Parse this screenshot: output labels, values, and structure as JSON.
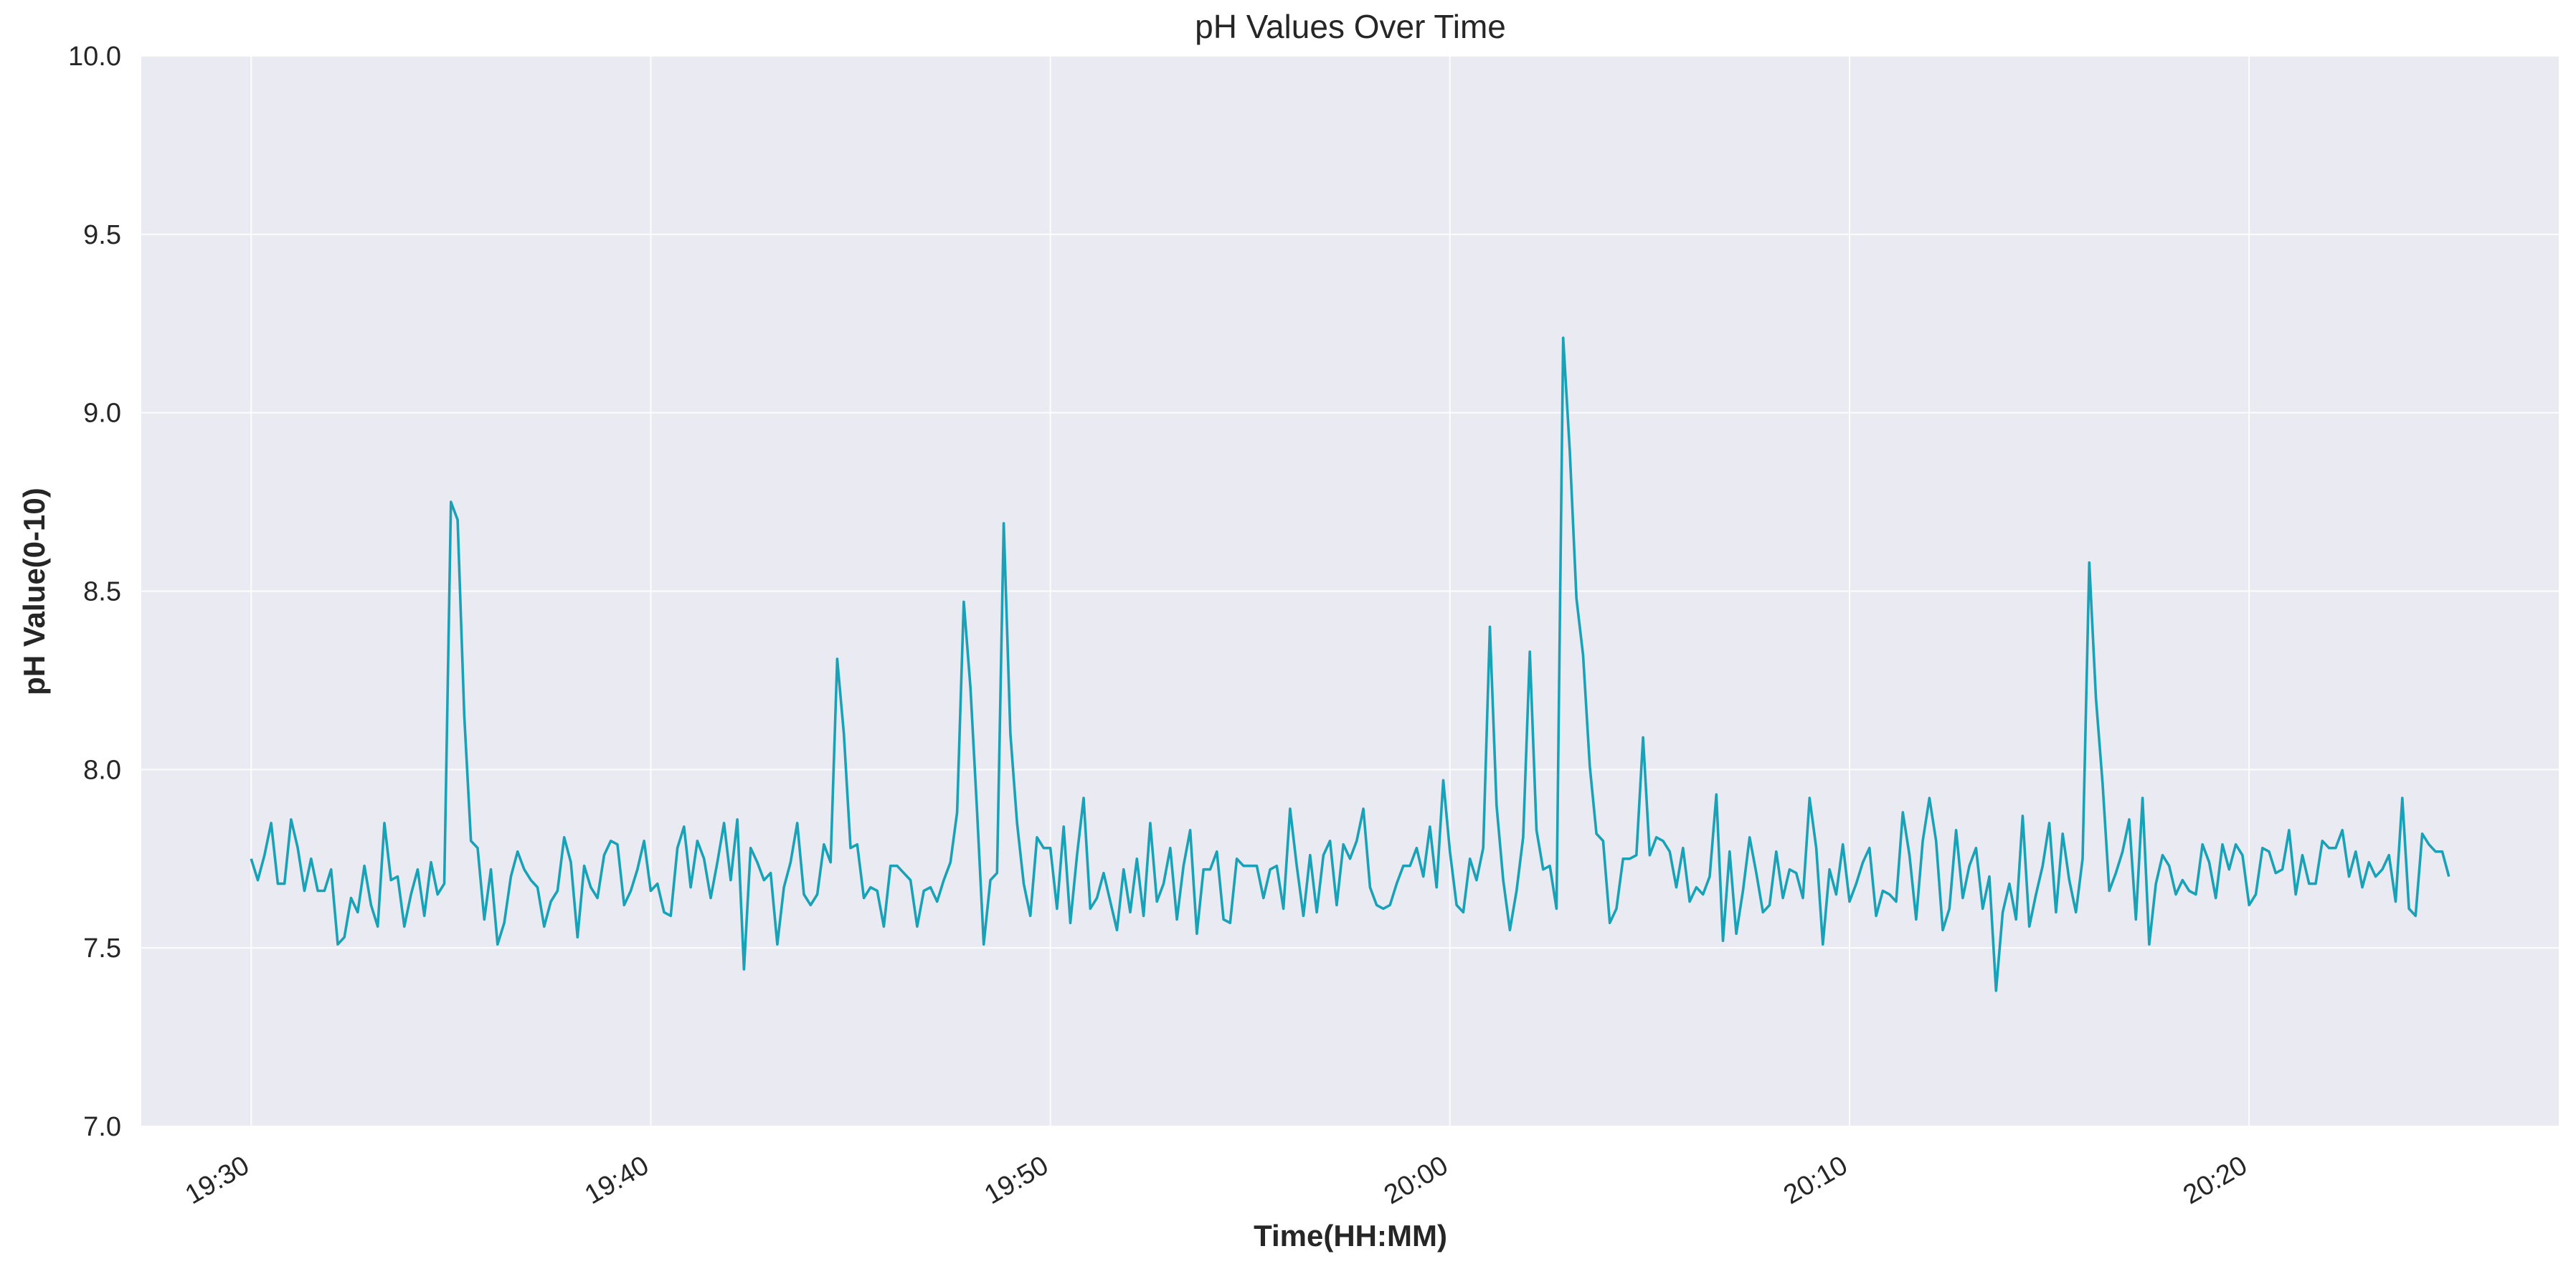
{
  "chart_data": {
    "type": "line",
    "title": "pH Values Over Time",
    "xlabel": "Time(HH:MM)",
    "ylabel": "pH Value(0-10)",
    "ylim": [
      7.0,
      10.0
    ],
    "xlim_minutes": [
      "19:27:15",
      "20:27:45"
    ],
    "yticks": [
      "7.0",
      "7.5",
      "8.0",
      "8.5",
      "9.0",
      "9.5",
      "10.0"
    ],
    "xticks": [
      "19:30",
      "19:40",
      "19:50",
      "20:00",
      "20:10",
      "20:20"
    ],
    "grid": true,
    "background": "#eaeaf2",
    "line_color": "#17a2b8",
    "series": [
      {
        "x_start": "19:30:00",
        "x_end": "20:25:00",
        "values": [
          7.75,
          7.69,
          7.76,
          7.85,
          7.68,
          7.68,
          7.86,
          7.78,
          7.66,
          7.75,
          7.66,
          7.66,
          7.72,
          7.51,
          7.53,
          7.64,
          7.6,
          7.73,
          7.62,
          7.56,
          7.85,
          7.69,
          7.7,
          7.56,
          7.65,
          7.72,
          7.59,
          7.74,
          7.65,
          7.68,
          8.75,
          8.7,
          8.15,
          7.8,
          7.78,
          7.58,
          7.72,
          7.51,
          7.57,
          7.7,
          7.77,
          7.72,
          7.69,
          7.67,
          7.56,
          7.63,
          7.66,
          7.81,
          7.74,
          7.53,
          7.73,
          7.67,
          7.64,
          7.76,
          7.8,
          7.79,
          7.62,
          7.66,
          7.72,
          7.8,
          7.66,
          7.68,
          7.6,
          7.59,
          7.78,
          7.84,
          7.67,
          7.8,
          7.75,
          7.64,
          7.74,
          7.85,
          7.69,
          7.86,
          7.44,
          7.78,
          7.74,
          7.69,
          7.71,
          7.51,
          7.67,
          7.74,
          7.85,
          7.65,
          7.62,
          7.65,
          7.79,
          7.74,
          8.31,
          8.1,
          7.78,
          7.79,
          7.64,
          7.67,
          7.66,
          7.56,
          7.73,
          7.73,
          7.71,
          7.69,
          7.56,
          7.66,
          7.67,
          7.63,
          7.69,
          7.74,
          7.88,
          8.47,
          8.23,
          7.88,
          7.51,
          7.69,
          7.71,
          8.69,
          8.1,
          7.85,
          7.68,
          7.59,
          7.81,
          7.78,
          7.78,
          7.61,
          7.84,
          7.57,
          7.76,
          7.92,
          7.61,
          7.64,
          7.71,
          7.63,
          7.55,
          7.72,
          7.6,
          7.75,
          7.59,
          7.85,
          7.63,
          7.68,
          7.78,
          7.58,
          7.73,
          7.83,
          7.54,
          7.72,
          7.72,
          7.77,
          7.58,
          7.57,
          7.75,
          7.73,
          7.73,
          7.73,
          7.64,
          7.72,
          7.73,
          7.61,
          7.89,
          7.73,
          7.59,
          7.76,
          7.6,
          7.76,
          7.8,
          7.62,
          7.79,
          7.75,
          7.8,
          7.89,
          7.67,
          7.62,
          7.61,
          7.62,
          7.68,
          7.73,
          7.73,
          7.78,
          7.7,
          7.84,
          7.67,
          7.97,
          7.77,
          7.62,
          7.6,
          7.75,
          7.69,
          7.78,
          8.4,
          7.9,
          7.69,
          7.55,
          7.66,
          7.81,
          8.33,
          7.83,
          7.72,
          7.73,
          7.61,
          9.21,
          8.89,
          8.48,
          8.32,
          8.01,
          7.82,
          7.8,
          7.57,
          7.61,
          7.75,
          7.75,
          7.76,
          8.09,
          7.76,
          7.81,
          7.8,
          7.77,
          7.67,
          7.78,
          7.63,
          7.67,
          7.65,
          7.7,
          7.93,
          7.52,
          7.77,
          7.54,
          7.66,
          7.81,
          7.71,
          7.6,
          7.62,
          7.77,
          7.64,
          7.72,
          7.71,
          7.64,
          7.92,
          7.78,
          7.51,
          7.72,
          7.65,
          7.79,
          7.63,
          7.68,
          7.74,
          7.78,
          7.59,
          7.66,
          7.65,
          7.63,
          7.88,
          7.76,
          7.58,
          7.8,
          7.92,
          7.8,
          7.55,
          7.61,
          7.83,
          7.64,
          7.73,
          7.78,
          7.61,
          7.7,
          7.38,
          7.6,
          7.68,
          7.58,
          7.87,
          7.56,
          7.65,
          7.73,
          7.85,
          7.6,
          7.82,
          7.69,
          7.6,
          7.75,
          8.58,
          8.2,
          7.96,
          7.66,
          7.71,
          7.77,
          7.86,
          7.58,
          7.92,
          7.51,
          7.68,
          7.76,
          7.73,
          7.65,
          7.69,
          7.66,
          7.65,
          7.79,
          7.74,
          7.64,
          7.79,
          7.72,
          7.79,
          7.76,
          7.62,
          7.65,
          7.78,
          7.77,
          7.71,
          7.72,
          7.83,
          7.65,
          7.76,
          7.68,
          7.68,
          7.8,
          7.78,
          7.78,
          7.83,
          7.7,
          7.77,
          7.67,
          7.74,
          7.7,
          7.72,
          7.76,
          7.63,
          7.92,
          7.61,
          7.59,
          7.82,
          7.79,
          7.77,
          7.77,
          7.7
        ]
      }
    ]
  }
}
